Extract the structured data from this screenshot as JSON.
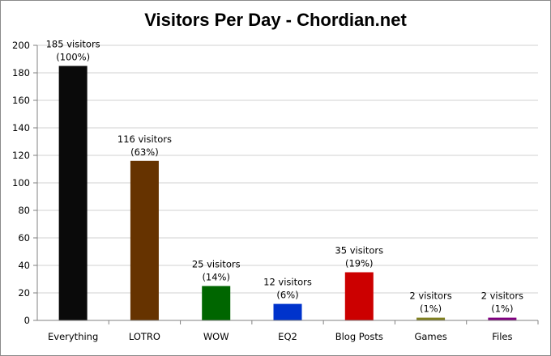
{
  "chart_data": {
    "type": "bar",
    "title": "Visitors Per Day - Chordian.net",
    "xlabel": "",
    "ylabel": "",
    "ylim": [
      0,
      200
    ],
    "yticks": [
      0,
      20,
      40,
      60,
      80,
      100,
      120,
      140,
      160,
      180,
      200
    ],
    "grid": true,
    "legend": "none",
    "categories": [
      "Everything",
      "LOTRO",
      "WOW",
      "EQ2",
      "Blog Posts",
      "Games",
      "Files"
    ],
    "values": [
      185,
      116,
      25,
      12,
      35,
      2,
      2
    ],
    "colors": [
      "#0a0a0a",
      "#663300",
      "#006600",
      "#0033cc",
      "#cc0000",
      "#808020",
      "#800080"
    ],
    "data_labels": [
      [
        "185 visitors",
        "(100%)"
      ],
      [
        "116 visitors",
        "(63%)"
      ],
      [
        "25 visitors",
        "(14%)"
      ],
      [
        "12 visitors",
        "(6%)"
      ],
      [
        "35 visitors",
        "(19%)"
      ],
      [
        "2 visitors",
        "(1%)"
      ],
      [
        "2 visitors",
        "(1%)"
      ]
    ]
  }
}
